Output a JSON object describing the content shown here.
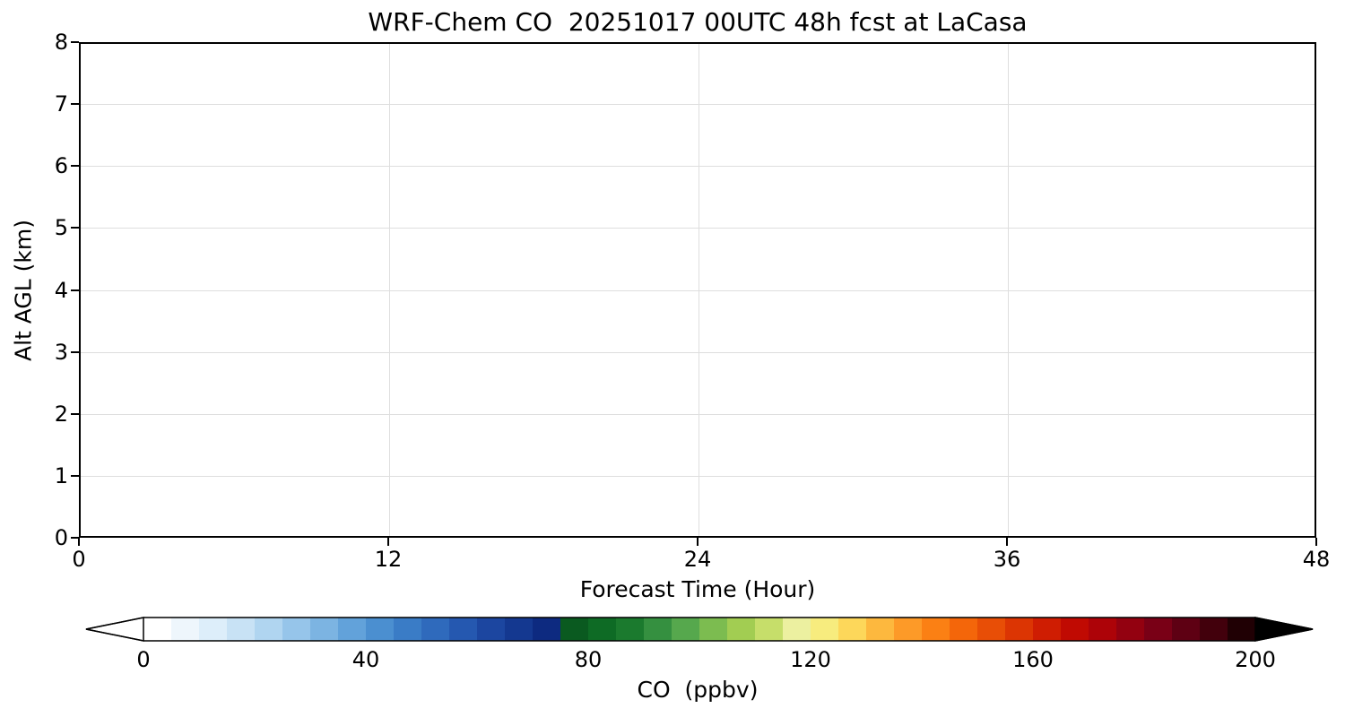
{
  "title": "WRF-Chem CO  20251017 00UTC 48h fcst at LaCasa",
  "chart_data": {
    "type": "heatmap",
    "title": "WRF-Chem CO  20251017 00UTC 48h fcst at LaCasa",
    "xlabel": "Forecast Time (Hour)",
    "ylabel": "Alt AGL (km)",
    "xlim": [
      0,
      48
    ],
    "ylim": [
      0,
      8
    ],
    "x_ticks": [
      0,
      12,
      24,
      36,
      48
    ],
    "y_ticks": [
      0,
      1,
      2,
      3,
      4,
      5,
      6,
      7,
      8
    ],
    "grid": true,
    "values": [],
    "colorbar": {
      "label": "CO  (ppbv)",
      "ticks": [
        0,
        40,
        80,
        120,
        160,
        200
      ],
      "range": [
        0,
        200
      ],
      "extend": "both",
      "under_color": "#ffffff",
      "over_color": "#000000",
      "colors": [
        "#ffffff",
        "#eef6fc",
        "#ddeefa",
        "#c8e2f5",
        "#b0d5f0",
        "#96c5ea",
        "#7cb4e2",
        "#62a2da",
        "#4b8fd0",
        "#3a7cc6",
        "#2f6abc",
        "#2558b0",
        "#1c46a0",
        "#143890",
        "#0d2a80",
        "#0a5a20",
        "#0e6b25",
        "#1b7a2e",
        "#359040",
        "#56a84d",
        "#7cbc50",
        "#a2cd52",
        "#c6de6a",
        "#ecf0a0",
        "#f7ec7e",
        "#fdd75a",
        "#fdb83e",
        "#fd9a28",
        "#fb8014",
        "#f4660a",
        "#e84e06",
        "#dc3503",
        "#cf1d02",
        "#c00a02",
        "#ad0308",
        "#930110",
        "#790016",
        "#5e0013",
        "#42000c",
        "#200004"
      ]
    }
  }
}
